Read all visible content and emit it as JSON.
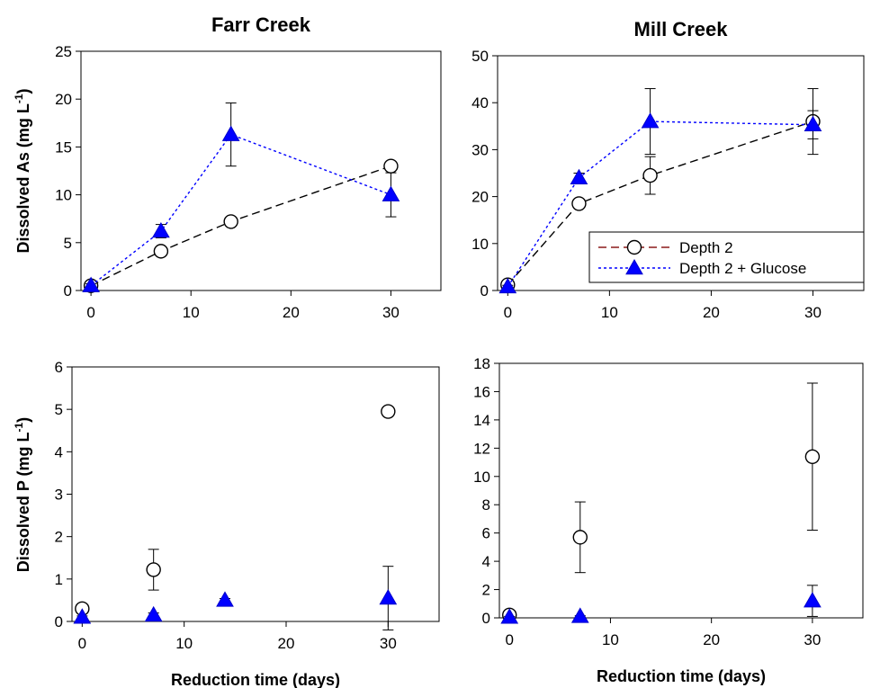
{
  "chart_data": [
    {
      "type": "scatter",
      "title": "Farr Creek",
      "xlabel": "",
      "ylabel_main": "Dissolved As (mg L",
      "ylabel_sup": "-1",
      "ylabel_end": ")",
      "xlim": [
        -1,
        35
      ],
      "ylim": [
        0,
        25
      ],
      "xticks": [
        0,
        10,
        20,
        30
      ],
      "yticks": [
        0,
        5,
        10,
        15,
        20,
        25
      ],
      "series": [
        {
          "key": "d2",
          "line": true,
          "points": [
            {
              "x": 0,
              "y": 0.5,
              "err": 0.2
            },
            {
              "x": 7,
              "y": 4.1,
              "err": 0.4
            },
            {
              "x": 14,
              "y": 7.2,
              "err": 0.3
            },
            {
              "x": 30,
              "y": 13.0,
              "err": 0.3
            }
          ]
        },
        {
          "key": "d2g",
          "line": true,
          "points": [
            {
              "x": 0,
              "y": 0.5,
              "err": 0.2
            },
            {
              "x": 7,
              "y": 6.2,
              "err": 0.7
            },
            {
              "x": 14,
              "y": 16.3,
              "err": 3.3
            },
            {
              "x": 30,
              "y": 10.0,
              "err": 2.3
            }
          ]
        }
      ]
    },
    {
      "type": "scatter",
      "title": "Mill Creek",
      "xlabel": "",
      "ylabel_main": "",
      "ylabel_sup": "",
      "ylabel_end": "",
      "xlim": [
        -1,
        35
      ],
      "ylim": [
        0,
        50
      ],
      "xticks": [
        0,
        10,
        20,
        30
      ],
      "yticks": [
        0,
        10,
        20,
        30,
        40,
        50
      ],
      "legend": {
        "position": "bottom-right",
        "entries": [
          "Depth 2",
          "Depth 2 + Glucose"
        ]
      },
      "series": [
        {
          "key": "d2",
          "line": true,
          "points": [
            {
              "x": 0,
              "y": 1.2,
              "err": 0.3
            },
            {
              "x": 7,
              "y": 18.5,
              "err": 0.8
            },
            {
              "x": 14,
              "y": 24.5,
              "err": 4.0
            },
            {
              "x": 30,
              "y": 36.0,
              "err": 7.0
            }
          ]
        },
        {
          "key": "d2g",
          "line": true,
          "points": [
            {
              "x": 0,
              "y": 0.8,
              "err": 0.3
            },
            {
              "x": 7,
              "y": 24.0,
              "err": 1.0
            },
            {
              "x": 14,
              "y": 36.0,
              "err": 7.0
            },
            {
              "x": 30,
              "y": 35.3,
              "err": 3.0
            }
          ]
        }
      ]
    },
    {
      "type": "scatter",
      "title": "",
      "xlabel": "Reduction time (days)",
      "ylabel_main": "Dissolved P (mg L",
      "ylabel_sup": "-1",
      "ylabel_end": ")",
      "xlim": [
        -1,
        35
      ],
      "ylim": [
        0,
        6
      ],
      "xticks": [
        0,
        10,
        20,
        30
      ],
      "yticks": [
        0,
        1,
        2,
        3,
        4,
        5,
        6
      ],
      "series": [
        {
          "key": "d2",
          "line": false,
          "points": [
            {
              "x": 0,
              "y": 0.3,
              "err": 0.05
            },
            {
              "x": 7,
              "y": 1.22,
              "err": 0.48
            },
            {
              "x": 30,
              "y": 4.95,
              "err": 0.08
            }
          ]
        },
        {
          "key": "d2g",
          "line": false,
          "points": [
            {
              "x": 0,
              "y": 0.1,
              "err": 0.03
            },
            {
              "x": 7,
              "y": 0.15,
              "err": 0.05
            },
            {
              "x": 14,
              "y": 0.5,
              "err": 0.04
            },
            {
              "x": 30,
              "y": 0.55,
              "err": 0.75
            }
          ]
        }
      ]
    },
    {
      "type": "scatter",
      "title": "",
      "xlabel": "Reduction time (days)",
      "ylabel_main": "",
      "ylabel_sup": "",
      "ylabel_end": "",
      "xlim": [
        -1,
        35
      ],
      "ylim": [
        0,
        18
      ],
      "xticks": [
        0,
        10,
        20,
        30
      ],
      "yticks": [
        0,
        2,
        4,
        6,
        8,
        10,
        12,
        14,
        16,
        18
      ],
      "series": [
        {
          "key": "d2",
          "line": false,
          "points": [
            {
              "x": 0,
              "y": 0.2,
              "err": 0.1
            },
            {
              "x": 7,
              "y": 5.7,
              "err": 2.5
            },
            {
              "x": 30,
              "y": 11.4,
              "err": 5.2
            }
          ]
        },
        {
          "key": "d2g",
          "line": false,
          "points": [
            {
              "x": 0,
              "y": 0.05,
              "err": 0.05
            },
            {
              "x": 7,
              "y": 0.1,
              "err": 0.05
            },
            {
              "x": 30,
              "y": 1.2,
              "err": 1.1
            }
          ]
        }
      ]
    }
  ],
  "colors": {
    "d2_line": "#8b1a1a",
    "d2g_line": "#0000ff",
    "d2_marker_fill": "#ffffff",
    "d2g_marker_fill": "#0000ff",
    "axis": "#000000"
  }
}
